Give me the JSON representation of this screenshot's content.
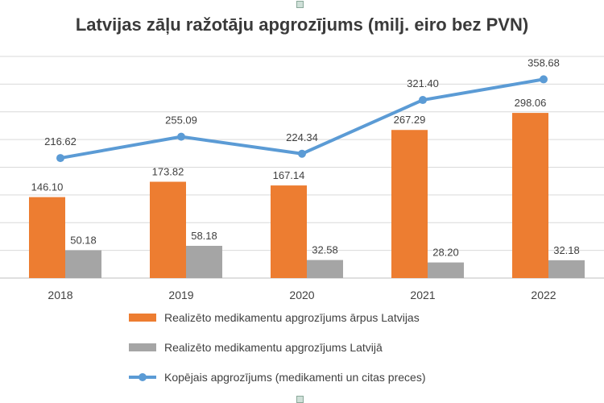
{
  "chart_data": {
    "type": "bar+line",
    "title": "Latvijas zāļu ražotāju apgrozījums (milj. eiro bez PVN)",
    "categories": [
      "2018",
      "2019",
      "2020",
      "2021",
      "2022"
    ],
    "series": [
      {
        "name": "Realizēto medikamentu apgrozījums ārpus Latvijas",
        "type": "bar",
        "color": "#ED7D31",
        "values": [
          146.1,
          173.82,
          167.14,
          267.29,
          298.06
        ],
        "labels": [
          "146.10",
          "173.82",
          "167.14",
          "267.29",
          "298.06"
        ]
      },
      {
        "name": "Realizēto medikamentu apgrozījums Latvijā",
        "type": "bar",
        "color": "#A5A5A5",
        "values": [
          50.18,
          58.18,
          32.58,
          28.2,
          32.18
        ],
        "labels": [
          "50.18",
          "58.18",
          "32.58",
          "28.20",
          "32.18"
        ]
      },
      {
        "name": "Kopējais apgrozījums (medikamenti un citas preces)",
        "type": "line",
        "color": "#5B9BD5",
        "values": [
          216.62,
          255.09,
          224.34,
          321.4,
          358.68
        ],
        "labels": [
          "216.62",
          "255.09",
          "224.34",
          "321.40",
          "358.68"
        ]
      }
    ],
    "ylim": [
      0,
      400
    ],
    "gridlines": [
      0,
      50,
      100,
      150,
      200,
      250,
      300,
      350,
      400
    ],
    "grid": true,
    "legend": "bottom"
  }
}
